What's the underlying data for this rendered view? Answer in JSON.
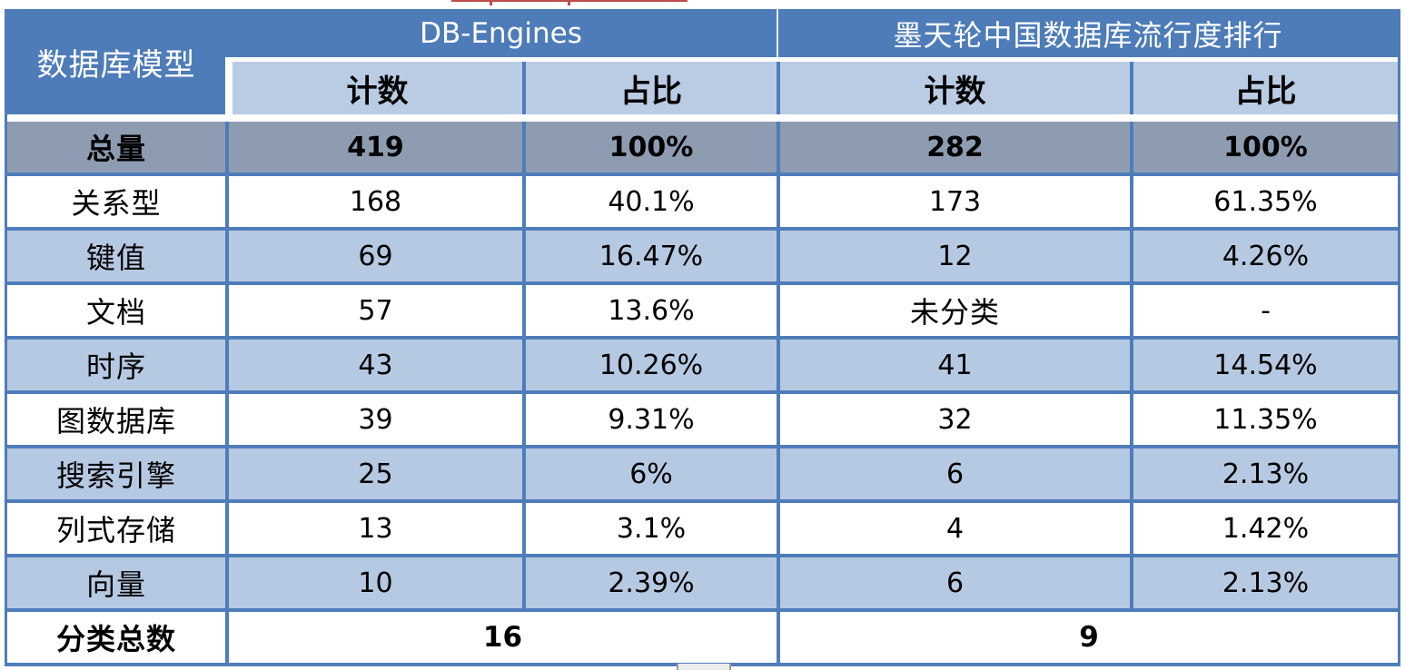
{
  "header": {
    "corner": "数据库模型",
    "groups": [
      {
        "label": "DB-Engines"
      },
      {
        "label": "墨天轮中国数据库流行度排行"
      }
    ],
    "sub_headers": [
      "计数",
      "占比",
      "计数",
      "占比"
    ]
  },
  "footer": {
    "label": "分类总数",
    "db_engines_total": "16",
    "mtl_total": "9"
  },
  "chart_data": {
    "type": "table",
    "title": "数据库模型 — DB-Engines 与 墨天轮中国数据库流行度排行 对比",
    "columns": [
      "数据库模型",
      "DB-Engines 计数",
      "DB-Engines 占比",
      "墨天轮中国数据库流行度排行 计数",
      "墨天轮中国数据库流行度排行 占比"
    ],
    "rows": [
      [
        "总量",
        "419",
        "100%",
        "282",
        "100%"
      ],
      [
        "关系型",
        "168",
        "40.1%",
        "173",
        "61.35%"
      ],
      [
        "键值",
        "69",
        "16.47%",
        "12",
        "4.26%"
      ],
      [
        "文档",
        "57",
        "13.6%",
        "未分类",
        "-"
      ],
      [
        "时序",
        "43",
        "10.26%",
        "41",
        "14.54%"
      ],
      [
        "图数据库",
        "39",
        "9.31%",
        "32",
        "11.35%"
      ],
      [
        "搜索引擎",
        "25",
        "6%",
        "6",
        "2.13%"
      ],
      [
        "列式存储",
        "13",
        "3.1%",
        "4",
        "1.42%"
      ],
      [
        "向量",
        "10",
        "2.39%",
        "6",
        "2.13%"
      ]
    ],
    "footer_row": [
      "分类总数",
      "16",
      "9"
    ],
    "layout_hints": "first data row (总量) is gray emphasis row; remaining rows alternate white / light-blue banding; last row merges count+percent columns per source"
  },
  "colors": {
    "header_blue": "#4E7CB8",
    "subheader_blue": "#BACCE4",
    "band_blue": "#B6C9E2",
    "total_gray": "#8E9CB2",
    "border_blue": "#4E7DBA",
    "red_artifact": "#C14B48",
    "page_bg": "#FFFFFF",
    "text_dark": "#000000"
  }
}
